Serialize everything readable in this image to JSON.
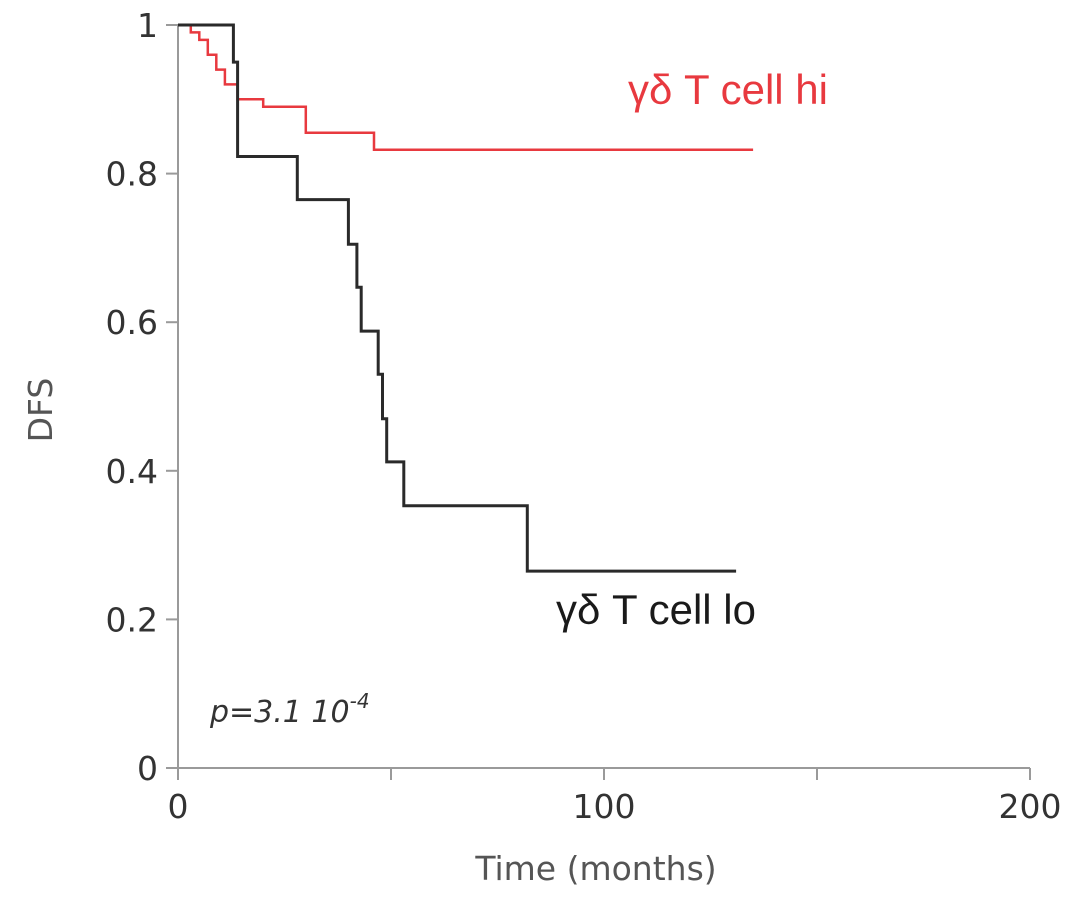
{
  "chart_data": {
    "type": "line",
    "subtype": "kaplan-meier step",
    "xlabel": "Time (months)",
    "ylabel": "DFS",
    "xlim": [
      0,
      200
    ],
    "ylim": [
      0,
      1
    ],
    "x_ticks": [
      0,
      50,
      100,
      150,
      200
    ],
    "x_tick_labels": [
      "0",
      "",
      "100",
      "",
      "200"
    ],
    "y_ticks": [
      0,
      0.2,
      0.4,
      0.6,
      0.8,
      1
    ],
    "y_tick_labels": [
      "0",
      "0.2",
      "0.4",
      "0.6",
      "0.8",
      "1"
    ],
    "grid": false,
    "annotation": {
      "base": "p=3.1 10",
      "exponent": "-4"
    },
    "series": [
      {
        "name": "γδ T cell hi",
        "color": "#e8393f",
        "points": [
          [
            0,
            1
          ],
          [
            3,
            1
          ],
          [
            3,
            0.99
          ],
          [
            5,
            0.99
          ],
          [
            5,
            0.98
          ],
          [
            7,
            0.98
          ],
          [
            7,
            0.96
          ],
          [
            9,
            0.96
          ],
          [
            9,
            0.94
          ],
          [
            11,
            0.94
          ],
          [
            11,
            0.92
          ],
          [
            14,
            0.92
          ],
          [
            14,
            0.9
          ],
          [
            20,
            0.9
          ],
          [
            20,
            0.89
          ],
          [
            30,
            0.89
          ],
          [
            30,
            0.855
          ],
          [
            46,
            0.855
          ],
          [
            46,
            0.832
          ],
          [
            135,
            0.832
          ]
        ]
      },
      {
        "name": "γδ T cell lo",
        "color": "#2a2a2a",
        "points": [
          [
            0,
            1
          ],
          [
            13,
            1
          ],
          [
            13,
            0.95
          ],
          [
            14,
            0.95
          ],
          [
            14,
            0.823
          ],
          [
            28,
            0.823
          ],
          [
            28,
            0.765
          ],
          [
            40,
            0.765
          ],
          [
            40,
            0.705
          ],
          [
            42,
            0.705
          ],
          [
            42,
            0.647
          ],
          [
            43,
            0.647
          ],
          [
            43,
            0.588
          ],
          [
            47,
            0.588
          ],
          [
            47,
            0.53
          ],
          [
            48,
            0.53
          ],
          [
            48,
            0.47
          ],
          [
            49,
            0.47
          ],
          [
            49,
            0.412
          ],
          [
            53,
            0.412
          ],
          [
            53,
            0.353
          ],
          [
            82,
            0.353
          ],
          [
            82,
            0.265
          ],
          [
            131,
            0.265
          ]
        ]
      }
    ]
  }
}
